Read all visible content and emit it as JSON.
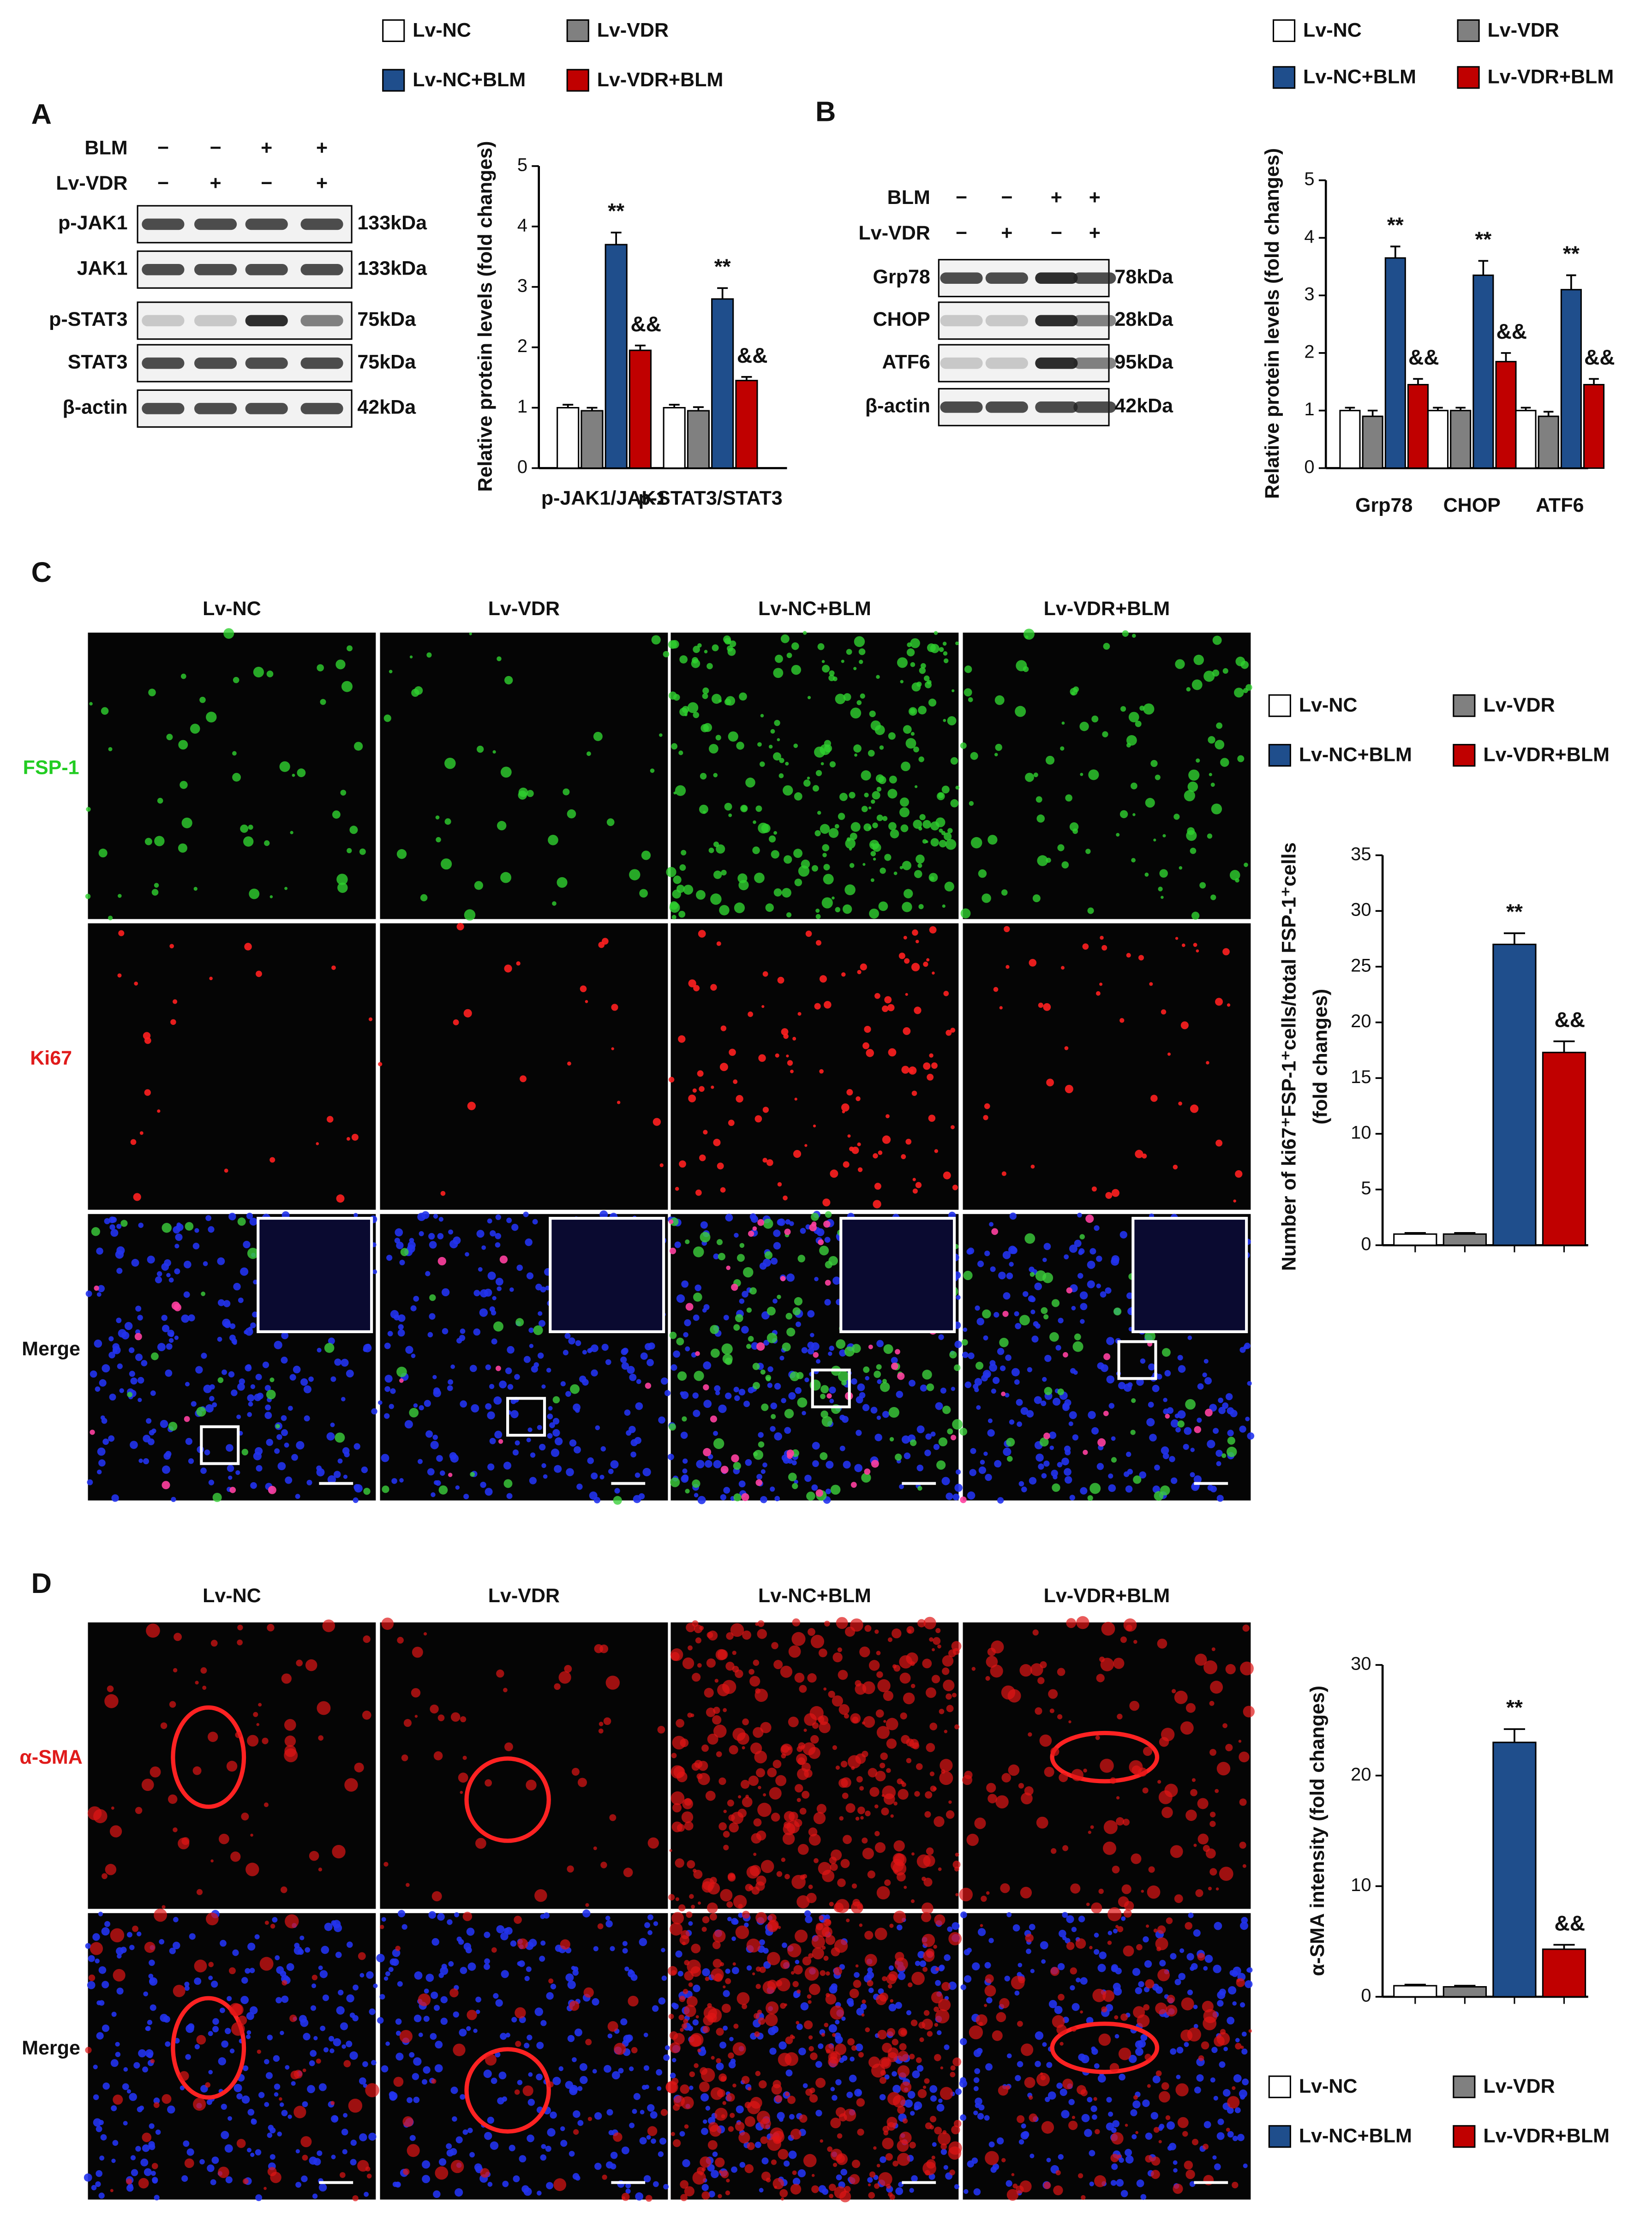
{
  "panels": {
    "A": {
      "label": "A",
      "blot": {
        "conditions": [
          {
            "name": "BLM",
            "signs": [
              "−",
              "−",
              "+",
              "+"
            ]
          },
          {
            "name": "Lv-VDR",
            "signs": [
              "−",
              "+",
              "−",
              "+"
            ]
          }
        ],
        "rows": [
          {
            "name": "p-JAK1",
            "size": "133kDa"
          },
          {
            "name": "JAK1",
            "size": "133kDa"
          },
          {
            "name": "p-STAT3",
            "size": "75kDa"
          },
          {
            "name": "STAT3",
            "size": "75kDa"
          },
          {
            "name": "β-actin",
            "size": "42kDa"
          }
        ]
      }
    },
    "B": {
      "label": "B",
      "blot": {
        "conditions": [
          {
            "name": "BLM",
            "signs": [
              "−",
              "−",
              "+",
              "+"
            ]
          },
          {
            "name": "Lv-VDR",
            "signs": [
              "−",
              "+",
              "−",
              "+"
            ]
          }
        ],
        "rows": [
          {
            "name": "Grp78",
            "size": "78kDa"
          },
          {
            "name": "CHOP",
            "size": "28kDa"
          },
          {
            "name": "ATF6",
            "size": "95kDa"
          },
          {
            "name": "β-actin",
            "size": "42kDa"
          }
        ]
      }
    },
    "C": {
      "label": "C",
      "columns": [
        "Lv-NC",
        "Lv-VDR",
        "Lv-NC+BLM",
        "Lv-VDR+BLM"
      ],
      "rows": [
        "FSP-1",
        "Ki67",
        "Merge"
      ]
    },
    "D": {
      "label": "D",
      "columns": [
        "Lv-NC",
        "Lv-VDR",
        "Lv-NC+BLM",
        "Lv-VDR+BLM"
      ],
      "rows": [
        "α-SMA",
        "Merge"
      ]
    }
  },
  "chart_data": [
    {
      "type": "bar",
      "ylabel": [
        "Relative protein levels (fold changes)"
      ],
      "categories": [
        "p-JAK1/JAK1",
        "p-STAT3/STAT3"
      ],
      "ylim": [
        0,
        5
      ],
      "yticks": [
        0,
        1,
        2,
        3,
        4,
        5
      ],
      "series": [
        {
          "name": "Lv-NC",
          "color": "#ffffff",
          "values": [
            1.0,
            1.0
          ],
          "errors": [
            0.05,
            0.05
          ]
        },
        {
          "name": "Lv-VDR",
          "color": "#808080",
          "values": [
            0.95,
            0.95
          ],
          "errors": [
            0.05,
            0.06
          ]
        },
        {
          "name": "Lv-NC+BLM",
          "color": "#1f4e8c",
          "values": [
            3.7,
            2.8
          ],
          "errors": [
            0.2,
            0.18
          ],
          "annotations": [
            "**",
            "**"
          ]
        },
        {
          "name": "Lv-VDR+BLM",
          "color": "#c00000",
          "values": [
            1.95,
            1.45
          ],
          "errors": [
            0.08,
            0.06
          ],
          "annotations": [
            "&&",
            "&&"
          ]
        }
      ]
    },
    {
      "type": "bar",
      "ylabel": [
        "Relative protein levels (fold changes)"
      ],
      "categories": [
        "Grp78",
        "CHOP",
        "ATF6"
      ],
      "ylim": [
        0,
        5
      ],
      "yticks": [
        0,
        1,
        2,
        3,
        4,
        5
      ],
      "series": [
        {
          "name": "Lv-NC",
          "color": "#ffffff",
          "values": [
            1.0,
            1.0,
            1.0
          ],
          "errors": [
            0.05,
            0.05,
            0.05
          ]
        },
        {
          "name": "Lv-VDR",
          "color": "#808080",
          "values": [
            0.9,
            1.0,
            0.9
          ],
          "errors": [
            0.1,
            0.05,
            0.08
          ]
        },
        {
          "name": "Lv-NC+BLM",
          "color": "#1f4e8c",
          "values": [
            3.65,
            3.35,
            3.1
          ],
          "errors": [
            0.2,
            0.25,
            0.25
          ],
          "annotations": [
            "**",
            "**",
            "**"
          ]
        },
        {
          "name": "Lv-VDR+BLM",
          "color": "#c00000",
          "values": [
            1.45,
            1.85,
            1.45
          ],
          "errors": [
            0.1,
            0.15,
            0.1
          ],
          "annotations": [
            "&&",
            "&&",
            "&&"
          ]
        }
      ]
    },
    {
      "type": "bar",
      "ylabel": [
        "Number of ki67⁺FSP-1⁺cells/total FSP-1⁺cells",
        "(fold changes)"
      ],
      "categories": [
        null
      ],
      "ylim": [
        0,
        35
      ],
      "yticks": [
        0,
        5,
        10,
        15,
        20,
        25,
        30,
        35
      ],
      "series": [
        {
          "name": "Lv-NC",
          "color": "#ffffff",
          "values": [
            1.0
          ],
          "errors": [
            0.1
          ]
        },
        {
          "name": "Lv-VDR",
          "color": "#808080",
          "values": [
            1.0
          ],
          "errors": [
            0.1
          ]
        },
        {
          "name": "Lv-NC+BLM",
          "color": "#1f4e8c",
          "values": [
            27
          ],
          "errors": [
            1.0
          ],
          "annotations": [
            "**"
          ]
        },
        {
          "name": "Lv-VDR+BLM",
          "color": "#c00000",
          "values": [
            17.3
          ],
          "errors": [
            1.0
          ],
          "annotations": [
            "&&"
          ]
        }
      ]
    },
    {
      "type": "bar",
      "ylabel": [
        "α-SMA intensity (fold changes)"
      ],
      "categories": [
        null
      ],
      "ylim": [
        0,
        30
      ],
      "yticks": [
        0,
        10,
        20,
        30
      ],
      "series": [
        {
          "name": "Lv-NC",
          "color": "#ffffff",
          "values": [
            1.0
          ],
          "errors": [
            0.1
          ]
        },
        {
          "name": "Lv-VDR",
          "color": "#808080",
          "values": [
            0.9
          ],
          "errors": [
            0.1
          ]
        },
        {
          "name": "Lv-NC+BLM",
          "color": "#1f4e8c",
          "values": [
            23
          ],
          "errors": [
            1.2
          ],
          "annotations": [
            "**"
          ]
        },
        {
          "name": "Lv-VDR+BLM",
          "color": "#c00000",
          "values": [
            4.3
          ],
          "errors": [
            0.4
          ],
          "annotations": [
            "&&"
          ]
        }
      ]
    }
  ]
}
